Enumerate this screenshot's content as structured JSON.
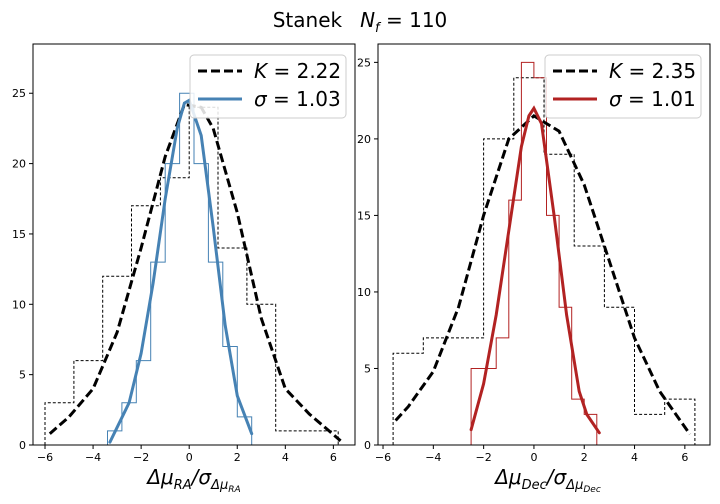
{
  "figure": {
    "title_name": "Stanek",
    "title_nf": "N",
    "title_nf_sub": "f",
    "title_nf_value": " = 110"
  },
  "chart_data": [
    {
      "type": "histogram",
      "panel": "left",
      "xlim": [
        -6.5,
        6.9
      ],
      "ylim": [
        0,
        28.5
      ],
      "xticks": [
        -6,
        -4,
        -2,
        0,
        2,
        4,
        6
      ],
      "yticks": [
        0,
        5,
        10,
        15,
        20,
        25
      ],
      "xlabel": {
        "main": "Δμ",
        "main_sub": "RA",
        "den": "/σ",
        "den_sub": "Δμ",
        "den_subsub": "RA"
      },
      "colors": {
        "wide": "#000000",
        "narrow": "#4682b4"
      },
      "wide_hist": {
        "edges": [
          -6,
          -4.8,
          -3.6,
          -2.4,
          -1.2,
          0,
          1.2,
          2.4,
          3.6,
          4.8,
          6.2
        ],
        "counts": [
          3,
          6,
          12,
          17,
          19,
          24,
          14,
          10,
          1,
          1
        ]
      },
      "narrow_hist": {
        "edges": [
          -3.4,
          -2.8,
          -2.2,
          -1.6,
          -1.0,
          -0.4,
          0.2,
          0.8,
          1.4,
          2.0,
          2.6
        ],
        "counts": [
          1,
          3,
          6,
          13,
          20,
          25,
          20,
          13,
          7,
          2
        ]
      },
      "wide_fit": {
        "x": [
          -5.8,
          -5,
          -4,
          -3,
          -2,
          -1,
          -0.2,
          0.5,
          1,
          2,
          3,
          4,
          5,
          6.3
        ],
        "y": [
          0.8,
          2,
          4,
          8,
          14,
          20.5,
          24.2,
          24,
          22.5,
          16.5,
          9,
          4,
          2.2,
          0.3
        ]
      },
      "narrow_fit": {
        "x": [
          -3.3,
          -2.5,
          -2,
          -1.5,
          -1,
          -0.5,
          -0.2,
          0,
          0.5,
          1,
          1.5,
          2,
          2.6
        ],
        "y": [
          0.2,
          3,
          6.5,
          11.5,
          17.5,
          22.5,
          24.3,
          24.5,
          22,
          15.5,
          8.5,
          3.5,
          0.8
        ]
      },
      "legend": {
        "k_label": "K",
        "k_value": " = 2.22",
        "s_label": "σ",
        "s_value": " = 1.03"
      }
    },
    {
      "type": "histogram",
      "panel": "right",
      "xlim": [
        -6.2,
        7.0
      ],
      "ylim": [
        0,
        26.2
      ],
      "xticks": [
        -6,
        -4,
        -2,
        0,
        2,
        4,
        6
      ],
      "yticks": [
        0,
        5,
        10,
        15,
        20,
        25
      ],
      "xlabel": {
        "main": "Δμ",
        "main_sub": "Dec",
        "den": "/σ",
        "den_sub": "Δμ",
        "den_subsub": "Dec"
      },
      "colors": {
        "wide": "#000000",
        "narrow": "#b22222"
      },
      "wide_hist": {
        "edges": [
          -5.6,
          -4.4,
          -3.2,
          -2.0,
          -0.8,
          0.4,
          1.6,
          2.8,
          4.0,
          5.2,
          6.4
        ],
        "counts": [
          6,
          7,
          7,
          20,
          24,
          19,
          13,
          9,
          2,
          3
        ]
      },
      "narrow_hist": {
        "edges": [
          -2.5,
          -2.0,
          -1.5,
          -1.0,
          -0.5,
          0,
          0.5,
          1.0,
          1.5,
          2.0,
          2.5
        ],
        "counts": [
          5,
          5,
          7,
          16,
          25,
          24,
          15,
          9,
          3,
          2
        ]
      },
      "wide_fit": {
        "x": [
          -5.5,
          -5,
          -4,
          -3,
          -2,
          -1,
          0,
          1,
          2,
          3,
          4,
          5,
          6.2
        ],
        "y": [
          1.6,
          2.5,
          4.8,
          9,
          15,
          20,
          21.5,
          20.5,
          17,
          12,
          7,
          3.5,
          0.7
        ]
      },
      "narrow_fit": {
        "x": [
          -2.5,
          -2,
          -1.5,
          -1,
          -0.5,
          -0.2,
          0,
          0.3,
          0.8,
          1.3,
          1.8,
          2.1,
          2.6
        ],
        "y": [
          1,
          4,
          8.5,
          14,
          19.5,
          21.5,
          22,
          21,
          15,
          8.5,
          3.5,
          2,
          0.8
        ]
      },
      "legend": {
        "k_label": "K",
        "k_value": " = 2.35",
        "s_label": "σ",
        "s_value": " = 1.01"
      }
    }
  ]
}
